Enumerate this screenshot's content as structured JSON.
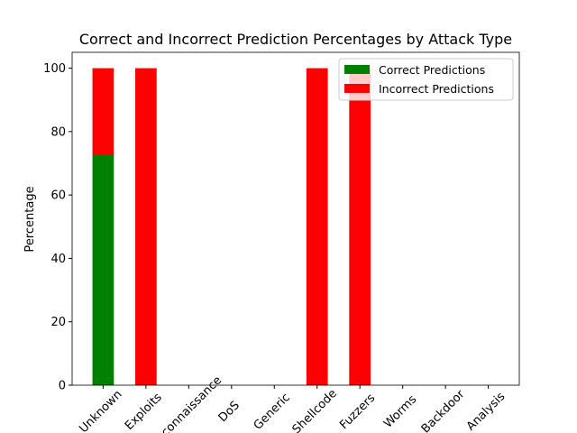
{
  "chart_data": {
    "type": "stacked-bar",
    "title": "Correct and Incorrect Prediction Percentages by Attack Type",
    "y_label": "Percentage",
    "categories": [
      "Unknown",
      "Exploits",
      "Reconnaissance",
      "DoS",
      "Generic",
      "Shellcode",
      "Fuzzers",
      "Worms",
      "Backdoor",
      "Analysis"
    ],
    "series": [
      {
        "name": "Correct Predictions",
        "color": "#008000",
        "values": [
          72.7,
          0,
          0,
          0,
          0,
          0,
          0,
          0,
          0,
          0
        ]
      },
      {
        "name": "Incorrect Predictions",
        "color": "#ff0000",
        "values": [
          27.3,
          100,
          0,
          0,
          0,
          100,
          100,
          0,
          0,
          0
        ]
      }
    ],
    "ylim": [
      0,
      105
    ],
    "yticks": [
      0,
      20,
      40,
      60,
      80,
      100
    ],
    "legend": "upper-right"
  }
}
